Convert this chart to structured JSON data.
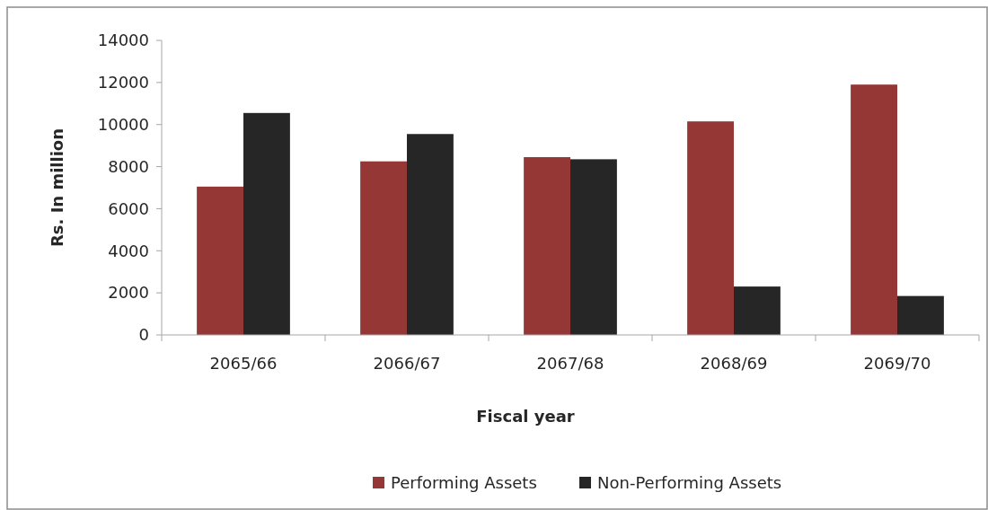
{
  "chart_data": {
    "type": "bar",
    "xlabel": "Fiscal year",
    "ylabel": "Rs. In million",
    "categories": [
      "2065/66",
      "2066/67",
      "2067/68",
      "2068/69",
      "2069/70"
    ],
    "series": [
      {
        "name": "Performing Assets",
        "color": "#953735",
        "values": [
          7050,
          8250,
          8450,
          10150,
          11900
        ]
      },
      {
        "name": "Non-Performing Assets",
        "color": "#262626",
        "values": [
          10550,
          9550,
          8350,
          2300,
          1850
        ]
      }
    ],
    "ylim": [
      0,
      14000
    ],
    "yticks": [
      0,
      2000,
      4000,
      6000,
      8000,
      10000,
      12000,
      14000
    ],
    "grid": false,
    "legend": "bottom"
  }
}
